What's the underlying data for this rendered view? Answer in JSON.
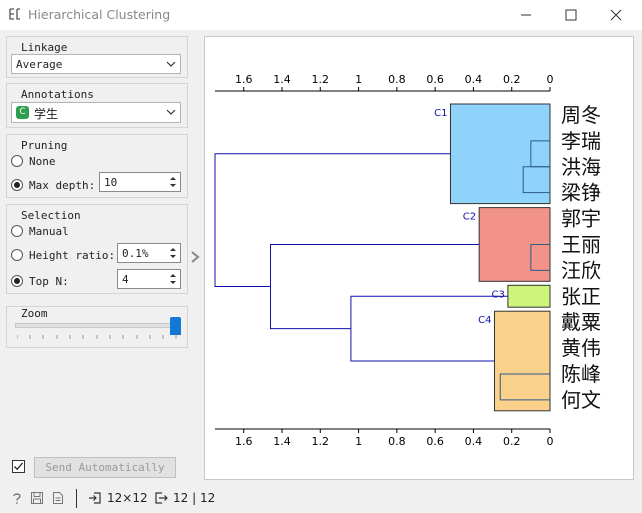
{
  "window": {
    "title": "Hierarchical Clustering"
  },
  "linkage": {
    "title": "Linkage",
    "value": "Average"
  },
  "annotations": {
    "title": "Annotations",
    "badge": "C",
    "value": "学生"
  },
  "pruning": {
    "title": "Pruning",
    "none_label": "None",
    "max_depth_label": "Max depth:",
    "max_depth_value": "10"
  },
  "selection": {
    "title": "Selection",
    "manual_label": "Manual",
    "height_ratio_label": "Height ratio:",
    "height_ratio_value": "0.1%",
    "top_n_label": "Top N:",
    "top_n_value": "4"
  },
  "zoom": {
    "title": "Zoom",
    "level": 1.0
  },
  "send": {
    "label": "Send Automatically",
    "checked": true
  },
  "status": {
    "input_summary": "12×12",
    "output_summary": "12 | 12"
  },
  "chart_data": {
    "type": "dendrogram",
    "axis_ticks": [
      1.6,
      1.4,
      1.2,
      1,
      0.8,
      0.6,
      0.4,
      0.2,
      0
    ],
    "axis_range": [
      1.75,
      0
    ],
    "leaves": [
      "周冬",
      "李瑞",
      "洪海",
      "梁铮",
      "郭宇",
      "王丽",
      "汪欣",
      "张正",
      "戴粟",
      "黄伟",
      "陈峰",
      "何文"
    ],
    "clusters": [
      {
        "name": "C1",
        "color": "#8fd3fb",
        "leaves": [
          0,
          3
        ],
        "height": 0.52
      },
      {
        "name": "C2",
        "color": "#f2938a",
        "leaves": [
          4,
          6
        ],
        "height": 0.37
      },
      {
        "name": "C3",
        "color": "#cdf57c",
        "leaves": [
          7,
          7
        ],
        "height": 0.22
      },
      {
        "name": "C4",
        "color": "#f9d18a",
        "leaves": [
          8,
          11
        ],
        "height": 0.29
      }
    ],
    "merges": [
      {
        "a": 1,
        "b": 2,
        "height": 0.1
      },
      {
        "a": 2,
        "b": 3,
        "height": 0.14
      },
      {
        "a": 5,
        "b": 6,
        "height": 0.1
      },
      {
        "a": 10,
        "b": 11,
        "height": 0.26
      }
    ],
    "upper_merges": [
      {
        "clusters": [
          2,
          3
        ],
        "height": 1.04
      },
      {
        "clusters": [
          1,
          2
        ],
        "height": 1.46
      },
      {
        "clusters": [
          0,
          1
        ],
        "height": 1.75
      }
    ],
    "line_color": "#1010b0"
  }
}
